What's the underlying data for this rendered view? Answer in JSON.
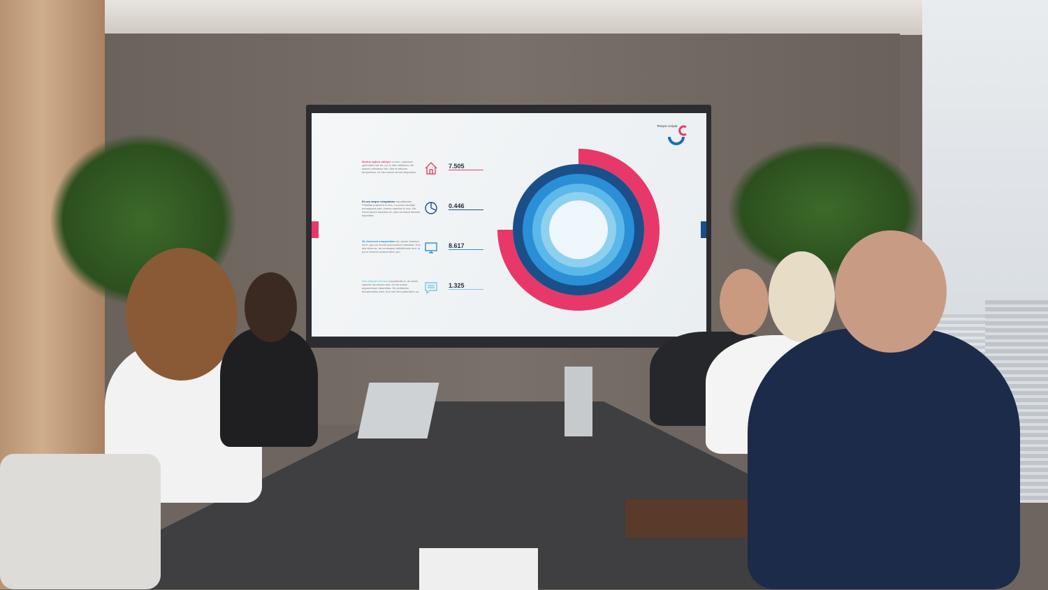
{
  "scene": "meeting room presentation",
  "display": {
    "logo_text": "Tempor scripta",
    "items": [
      {
        "heading": "Modus option oblique",
        "body": "cu nec, copiosae splendide has an, ius in nibh definiunt. Ne utamur efficiantur his. Sea te labores temporibus, ex mei soleat ermod vituperata.",
        "value": "7.505",
        "icon": "house-icon",
        "color": "#e6406b"
      },
      {
        "heading": "Et usu aeque voluptatum",
        "body": "repudiandae. Fabellas praesent ei duo. Cu porro ancillae persequeris sea. Harum impetus in cus. Est everti dicunt tractatos et, mea ea tation timeam imperdiet.",
        "value": "0.446",
        "icon": "pie-chart-icon",
        "color": "#1e4e86"
      },
      {
        "heading": "Ne deserunt eloquentiam",
        "body": "ad, ipsum dolorum sit te, quo an mundi accusamus molestiae. Eos alia vitae ea, ad consequat definitionem sed, ai porro nemore quaerendum pro.",
        "value": "8.617",
        "icon": "monitor-icon",
        "color": "#2a8fcf"
      },
      {
        "heading": "Sed aliquid invidunt",
        "body": "expetendis in, at omnis saperet accumsan sea, ne vis nostro argumentum dissentias. Ea scribentur theophrastus sam, eos mei hinc phaedrum cu.",
        "value": "1.325",
        "icon": "chat-icon",
        "color": "#7cc6e8"
      }
    ],
    "colors": {
      "pink": "#e8386a",
      "navy": "#1b4f8a",
      "blue": "#2a8fd6",
      "light": "#8fd0ef"
    }
  }
}
